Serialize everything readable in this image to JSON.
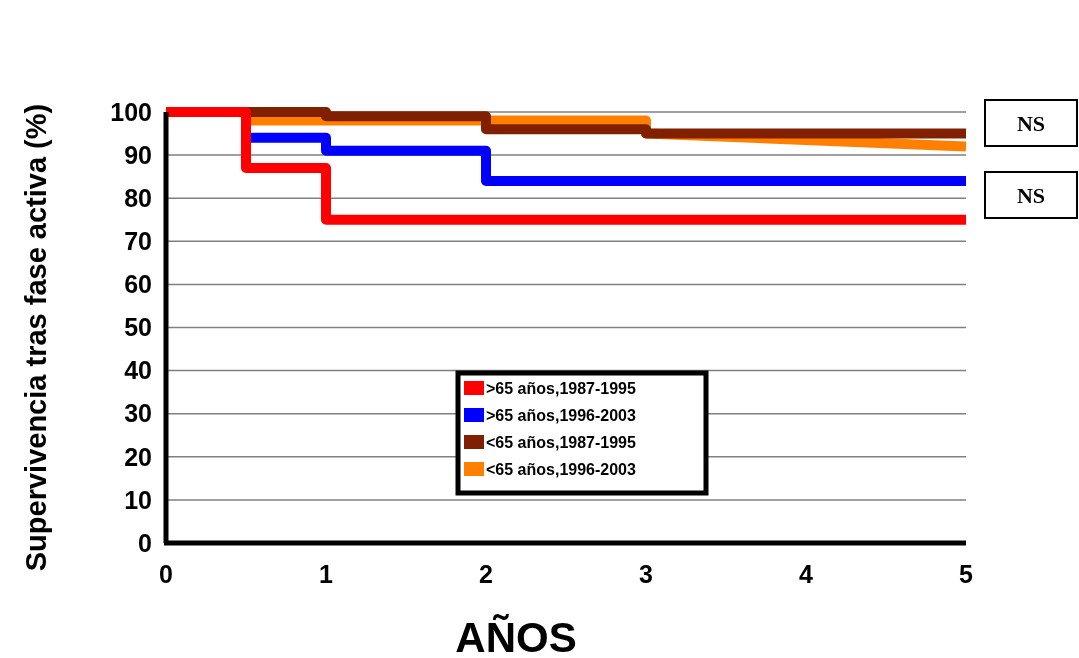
{
  "chart_data": {
    "type": "line",
    "xlabel": "AÑOS",
    "ylabel": "Supervivencia tras fase activa (%)",
    "xlim": [
      0,
      5
    ],
    "xticks": [
      0,
      1,
      2,
      3,
      4,
      5
    ],
    "ylim": [
      0,
      100
    ],
    "yticks": [
      0,
      10,
      20,
      30,
      40,
      50,
      60,
      70,
      80,
      90,
      100
    ],
    "grid": "y",
    "legend": "bottom",
    "marker": "none",
    "line_style": "solid",
    "annotations": [
      "NS",
      "NS"
    ],
    "series": [
      {
        "name": ">65 años,1987-1995",
        "color": "#ff0000",
        "x": [
          0,
          0.5,
          0.5,
          1,
          1,
          5
        ],
        "values": [
          100,
          100,
          87,
          87,
          75,
          75
        ]
      },
      {
        "name": ">65 años,1996-2003",
        "color": "#0000ff",
        "x": [
          0.5,
          1,
          1,
          2,
          2,
          5
        ],
        "values": [
          94,
          94,
          91,
          91,
          84,
          84
        ]
      },
      {
        "name": "<65 años,1987-1995",
        "color": "#802000",
        "x": [
          0,
          1,
          1,
          2,
          2,
          3,
          3,
          5
        ],
        "values": [
          100,
          100,
          99,
          99,
          96,
          96,
          95,
          95
        ]
      },
      {
        "name": "<65 años,1996-2003",
        "color": "#ff8000",
        "x": [
          0,
          0.5,
          0.5,
          3,
          3,
          5
        ],
        "values": [
          100,
          100,
          98,
          98,
          95,
          92
        ]
      }
    ]
  }
}
